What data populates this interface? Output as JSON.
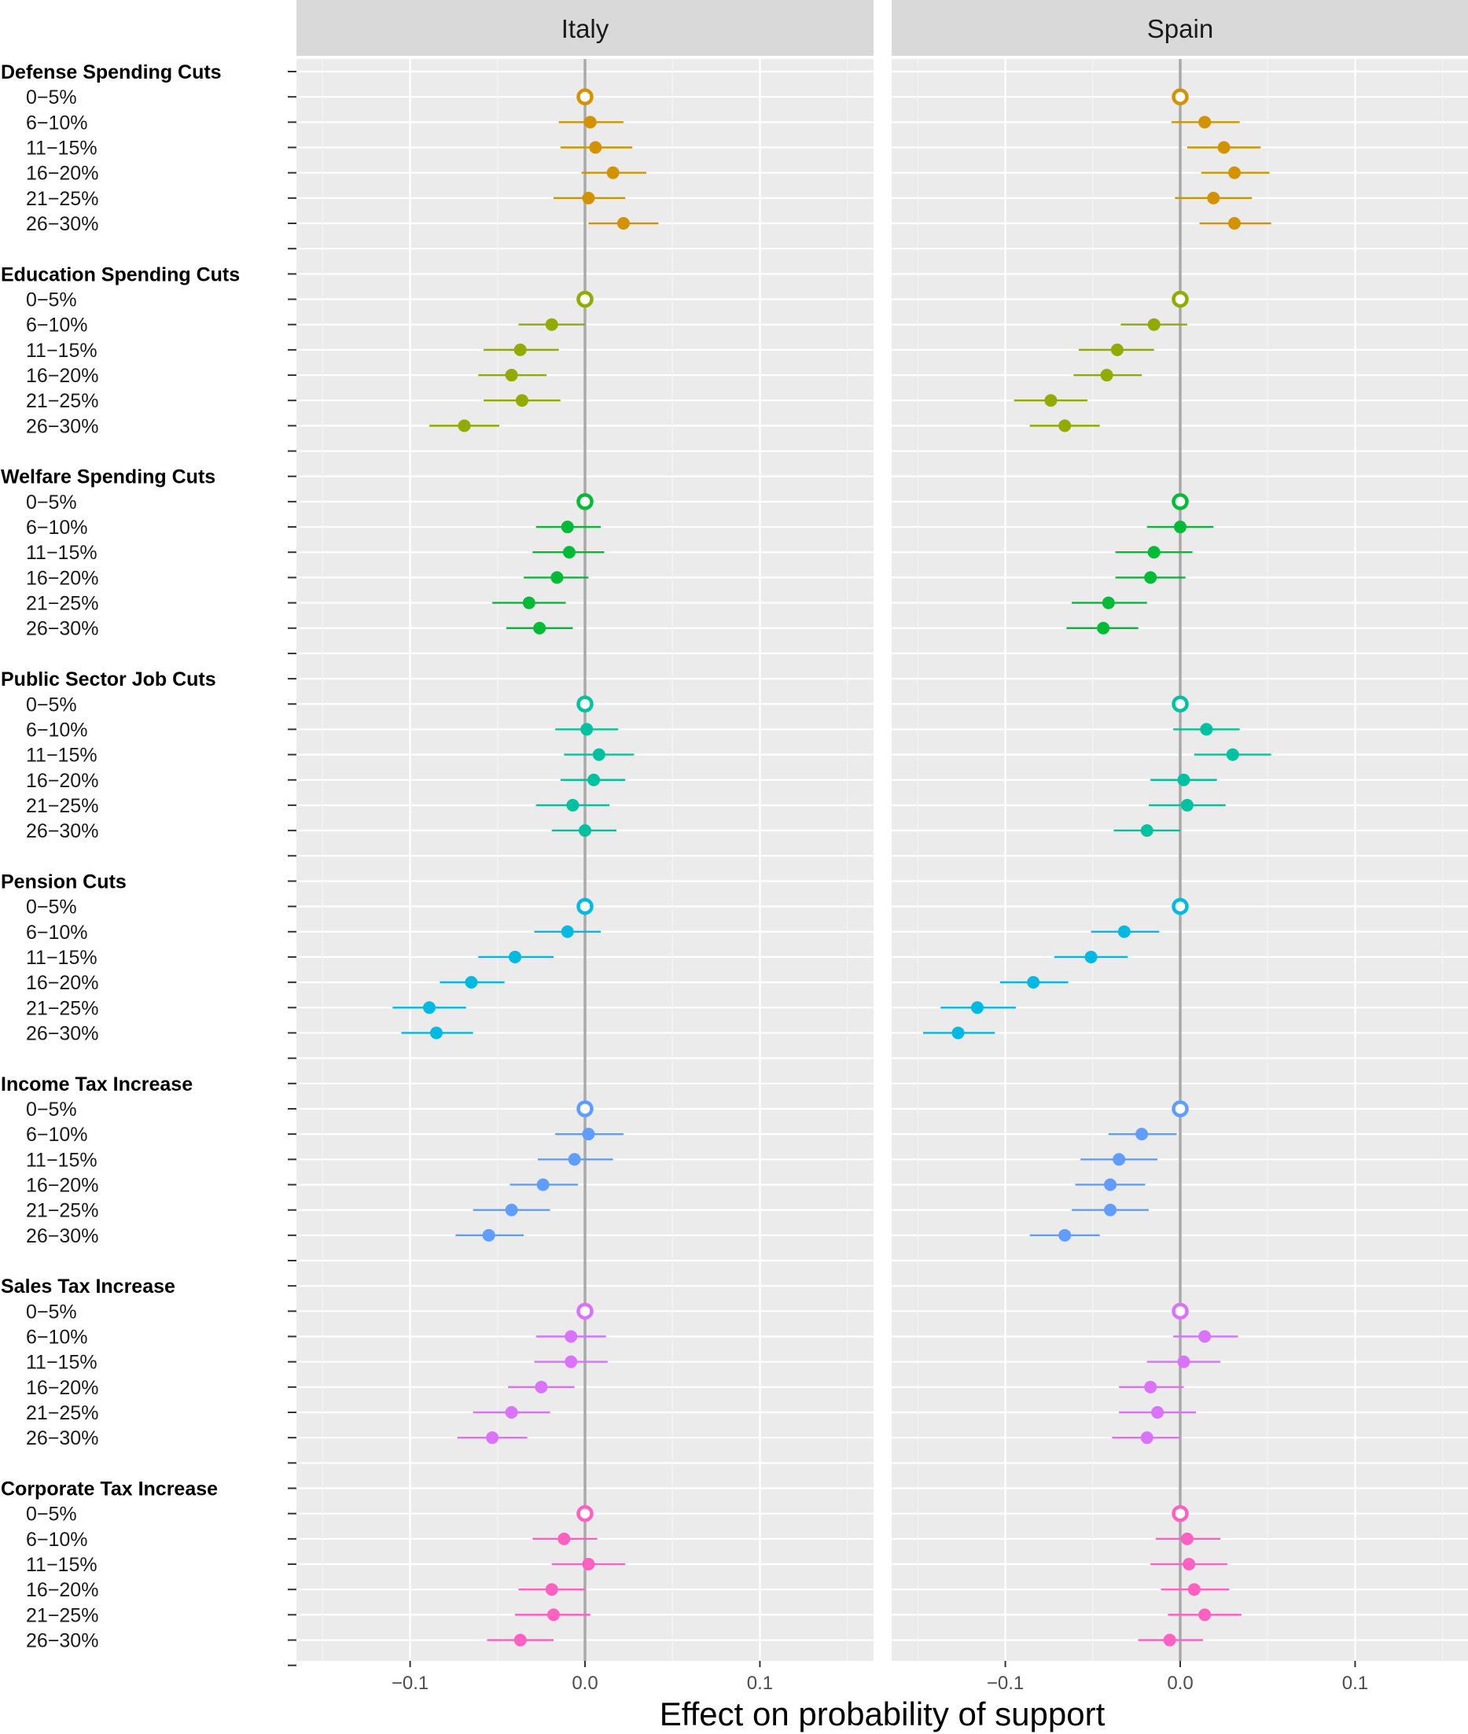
{
  "chart_data": {
    "type": "scatter",
    "subtype": "coefficient-plot-with-error-bars",
    "xlabel": "Effect on probability of support",
    "xlim": [
      -0.165,
      0.165
    ],
    "xticks": [
      -0.1,
      0.0,
      0.1
    ],
    "xtick_labels": [
      "−0.1",
      "0.0",
      "0.1"
    ],
    "panels": [
      "Italy",
      "Spain"
    ],
    "levels": [
      "0−5%",
      "6−10%",
      "11−15%",
      "16−20%",
      "21−25%",
      "26−30%"
    ],
    "groups": [
      {
        "name": "Defense Spending Cuts",
        "color": "#D39200",
        "Italy": [
          [
            0.0,
            0.0,
            0.0
          ],
          [
            0.003,
            -0.015,
            0.022
          ],
          [
            0.006,
            -0.014,
            0.027
          ],
          [
            0.016,
            -0.002,
            0.035
          ],
          [
            0.002,
            -0.018,
            0.023
          ],
          [
            0.022,
            0.002,
            0.042
          ]
        ],
        "Spain": [
          [
            0.0,
            0.0,
            0.0
          ],
          [
            0.014,
            -0.005,
            0.034
          ],
          [
            0.025,
            0.004,
            0.046
          ],
          [
            0.031,
            0.012,
            0.051
          ],
          [
            0.019,
            -0.003,
            0.041
          ],
          [
            0.031,
            0.011,
            0.052
          ]
        ]
      },
      {
        "name": "Education Spending Cuts",
        "color": "#93AA00",
        "Italy": [
          [
            0.0,
            0.0,
            0.0
          ],
          [
            -0.019,
            -0.038,
            0.0
          ],
          [
            -0.037,
            -0.058,
            -0.015
          ],
          [
            -0.042,
            -0.061,
            -0.022
          ],
          [
            -0.036,
            -0.058,
            -0.014
          ],
          [
            -0.069,
            -0.089,
            -0.049
          ]
        ],
        "Spain": [
          [
            0.0,
            0.0,
            0.0
          ],
          [
            -0.015,
            -0.034,
            0.004
          ],
          [
            -0.036,
            -0.058,
            -0.015
          ],
          [
            -0.042,
            -0.061,
            -0.022
          ],
          [
            -0.074,
            -0.095,
            -0.053
          ],
          [
            -0.066,
            -0.086,
            -0.046
          ]
        ]
      },
      {
        "name": "Welfare Spending Cuts",
        "color": "#00BA38",
        "Italy": [
          [
            0.0,
            0.0,
            0.0
          ],
          [
            -0.01,
            -0.028,
            0.009
          ],
          [
            -0.009,
            -0.03,
            0.011
          ],
          [
            -0.016,
            -0.035,
            0.002
          ],
          [
            -0.032,
            -0.053,
            -0.011
          ],
          [
            -0.026,
            -0.045,
            -0.007
          ]
        ],
        "Spain": [
          [
            0.0,
            0.0,
            0.0
          ],
          [
            0.0,
            -0.019,
            0.019
          ],
          [
            -0.015,
            -0.037,
            0.007
          ],
          [
            -0.017,
            -0.037,
            0.003
          ],
          [
            -0.041,
            -0.062,
            -0.019
          ],
          [
            -0.044,
            -0.065,
            -0.024
          ]
        ]
      },
      {
        "name": "Public Sector Job Cuts",
        "color": "#00C19F",
        "Italy": [
          [
            0.0,
            0.0,
            0.0
          ],
          [
            0.001,
            -0.017,
            0.019
          ],
          [
            0.008,
            -0.012,
            0.028
          ],
          [
            0.005,
            -0.014,
            0.023
          ],
          [
            -0.007,
            -0.028,
            0.014
          ],
          [
            0.0,
            -0.019,
            0.018
          ]
        ],
        "Spain": [
          [
            0.0,
            0.0,
            0.0
          ],
          [
            0.015,
            -0.004,
            0.034
          ],
          [
            0.03,
            0.008,
            0.052
          ],
          [
            0.002,
            -0.017,
            0.021
          ],
          [
            0.004,
            -0.018,
            0.026
          ],
          [
            -0.019,
            -0.038,
            0.0
          ]
        ]
      },
      {
        "name": "Pension Cuts",
        "color": "#00B9E3",
        "Italy": [
          [
            0.0,
            0.0,
            0.0
          ],
          [
            -0.01,
            -0.029,
            0.009
          ],
          [
            -0.04,
            -0.061,
            -0.018
          ],
          [
            -0.065,
            -0.083,
            -0.046
          ],
          [
            -0.089,
            -0.11,
            -0.068
          ],
          [
            -0.085,
            -0.105,
            -0.064
          ]
        ],
        "Spain": [
          [
            0.0,
            0.0,
            0.0
          ],
          [
            -0.032,
            -0.051,
            -0.012
          ],
          [
            -0.051,
            -0.072,
            -0.03
          ],
          [
            -0.084,
            -0.103,
            -0.064
          ],
          [
            -0.116,
            -0.137,
            -0.094
          ],
          [
            -0.127,
            -0.147,
            -0.106
          ]
        ]
      },
      {
        "name": "Income Tax Increase",
        "color": "#619CFF",
        "Italy": [
          [
            0.0,
            0.0,
            0.0
          ],
          [
            0.002,
            -0.017,
            0.022
          ],
          [
            -0.006,
            -0.027,
            0.016
          ],
          [
            -0.024,
            -0.043,
            -0.004
          ],
          [
            -0.042,
            -0.064,
            -0.02
          ],
          [
            -0.055,
            -0.074,
            -0.035
          ]
        ],
        "Spain": [
          [
            0.0,
            0.0,
            0.0
          ],
          [
            -0.022,
            -0.041,
            -0.002
          ],
          [
            -0.035,
            -0.057,
            -0.013
          ],
          [
            -0.04,
            -0.06,
            -0.02
          ],
          [
            -0.04,
            -0.062,
            -0.018
          ],
          [
            -0.066,
            -0.086,
            -0.046
          ]
        ]
      },
      {
        "name": "Sales Tax Increase",
        "color": "#DB72FB",
        "Italy": [
          [
            0.0,
            0.0,
            0.0
          ],
          [
            -0.008,
            -0.028,
            0.012
          ],
          [
            -0.008,
            -0.029,
            0.013
          ],
          [
            -0.025,
            -0.044,
            -0.006
          ],
          [
            -0.042,
            -0.064,
            -0.02
          ],
          [
            -0.053,
            -0.073,
            -0.033
          ]
        ],
        "Spain": [
          [
            0.0,
            0.0,
            0.0
          ],
          [
            0.014,
            -0.004,
            0.033
          ],
          [
            0.002,
            -0.019,
            0.023
          ],
          [
            -0.017,
            -0.035,
            0.002
          ],
          [
            -0.013,
            -0.035,
            0.009
          ],
          [
            -0.019,
            -0.039,
            0.0
          ]
        ]
      },
      {
        "name": "Corporate Tax Increase",
        "color": "#FF61C3",
        "Italy": [
          [
            0.0,
            0.0,
            0.0
          ],
          [
            -0.012,
            -0.03,
            0.007
          ],
          [
            0.002,
            -0.019,
            0.023
          ],
          [
            -0.019,
            -0.038,
            0.0
          ],
          [
            -0.018,
            -0.04,
            0.003
          ],
          [
            -0.037,
            -0.056,
            -0.018
          ]
        ],
        "Spain": [
          [
            0.0,
            0.0,
            0.0
          ],
          [
            0.004,
            -0.014,
            0.023
          ],
          [
            0.005,
            -0.017,
            0.027
          ],
          [
            0.008,
            -0.011,
            0.028
          ],
          [
            0.014,
            -0.007,
            0.035
          ],
          [
            -0.006,
            -0.024,
            0.013
          ]
        ]
      }
    ]
  }
}
